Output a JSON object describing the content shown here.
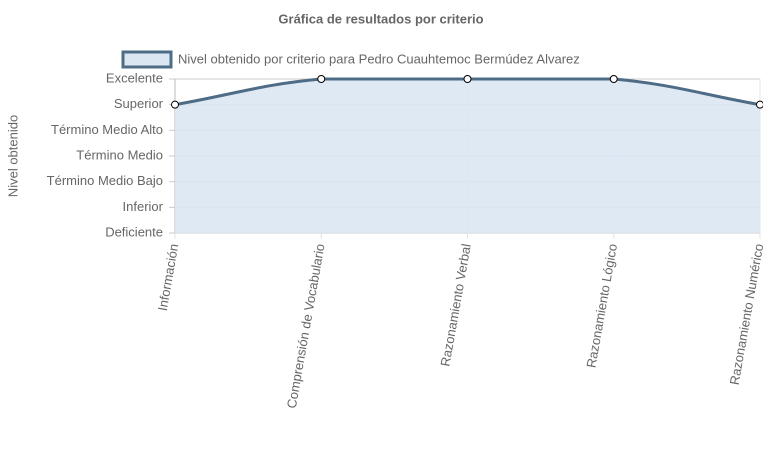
{
  "chart_data": {
    "type": "line",
    "title": "Gráfica de resultados por criterio",
    "y_label": "Nivel obtenido",
    "categories": [
      "Información",
      "Comprensión de Vocabulario",
      "Razonamiento Verbal",
      "Razonamiento Lógico",
      "Razonamiento Numérico"
    ],
    "series": [
      {
        "name": "Nivel obtenido por criterio para Pedro Cuauhtemoc Bermúdez Alvarez",
        "color": "#4e6c86",
        "fill": "#dae7f3",
        "values": [
          5,
          6,
          6,
          6,
          5
        ]
      }
    ],
    "ylim": [
      0,
      6
    ],
    "yticks": [
      {
        "value": 0,
        "label": "Deficiente"
      },
      {
        "value": 1,
        "label": "Inferior"
      },
      {
        "value": 2,
        "label": "Término Medio Bajo"
      },
      {
        "value": 3,
        "label": "Término Medio"
      },
      {
        "value": 4,
        "label": "Término Medio Alto"
      },
      {
        "value": 5,
        "label": "Superior"
      },
      {
        "value": 6,
        "label": "Excelente"
      }
    ],
    "grid": true
  }
}
